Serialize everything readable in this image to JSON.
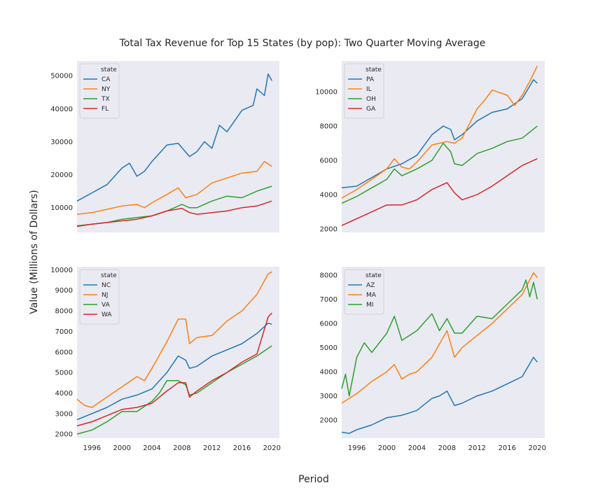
{
  "figure": {
    "title": "Total Tax Revenue for Top 15 States (by pop): Two Quarter Moving Average",
    "xlabel": "Period",
    "ylabel": "Value (Millions of Dollars)",
    "background": "#ffffff",
    "axes_background": "#eaeaf2"
  },
  "chart_data": [
    {
      "type": "line",
      "legend_title": "state",
      "legend_placement": "top-left",
      "grid": false,
      "xlim": [
        1994,
        2021
      ],
      "ylim": [
        2500,
        54500
      ],
      "yticks": [
        10000,
        20000,
        30000,
        40000,
        50000
      ],
      "xticks": [],
      "series": [
        {
          "name": "CA",
          "color": "#1f77b4",
          "x": [
            1994,
            1996,
            1998,
            2000,
            2001,
            2002,
            2003,
            2004,
            2006,
            2007.5,
            2009,
            2010,
            2011,
            2012,
            2013,
            2014,
            2016,
            2017.5,
            2018,
            2019,
            2019.5,
            2020
          ],
          "values": [
            12000,
            14500,
            17000,
            22000,
            23500,
            19500,
            21000,
            24000,
            29000,
            29500,
            25500,
            27000,
            30000,
            28000,
            35000,
            33000,
            39500,
            41000,
            46000,
            44000,
            50500,
            48500
          ]
        },
        {
          "name": "NY",
          "color": "#ff7f0e",
          "x": [
            1994,
            1996,
            1998,
            2000,
            2002,
            2003,
            2004,
            2006,
            2007.5,
            2008.5,
            2010,
            2012,
            2014,
            2016,
            2018,
            2019,
            2020
          ],
          "values": [
            8000,
            8500,
            9500,
            10500,
            11000,
            10000,
            11500,
            14000,
            16000,
            13000,
            14000,
            17500,
            19000,
            20500,
            21000,
            24000,
            22500
          ]
        },
        {
          "name": "TX",
          "color": "#2ca02c",
          "x": [
            1994,
            1996,
            1998,
            2000,
            2002,
            2004,
            2006,
            2008,
            2009,
            2010,
            2012,
            2014,
            2016,
            2018,
            2020
          ],
          "values": [
            4500,
            5000,
            5500,
            6500,
            7000,
            7500,
            9000,
            11000,
            10000,
            10000,
            12000,
            13500,
            13000,
            15000,
            16500
          ]
        },
        {
          "name": "FL",
          "color": "#d62728",
          "x": [
            1994,
            1996,
            1998,
            2000,
            2002,
            2004,
            2006,
            2008,
            2009,
            2010,
            2012,
            2014,
            2016,
            2018,
            2020
          ],
          "values": [
            4300,
            5000,
            5500,
            6000,
            6500,
            7500,
            9000,
            9800,
            8500,
            8000,
            8500,
            9000,
            10000,
            10500,
            12000
          ]
        }
      ]
    },
    {
      "type": "line",
      "legend_title": "state",
      "legend_placement": "top-left",
      "grid": false,
      "xlim": [
        1994,
        2021
      ],
      "ylim": [
        1800,
        11800
      ],
      "yticks": [
        2000,
        4000,
        6000,
        8000,
        10000
      ],
      "xticks": [],
      "series": [
        {
          "name": "PA",
          "color": "#1f77b4",
          "x": [
            1994,
            1996,
            1998,
            2000,
            2002,
            2004,
            2006,
            2007.5,
            2008.5,
            2009,
            2010,
            2012,
            2014,
            2016,
            2018,
            2019.5,
            2020
          ],
          "values": [
            4400,
            4500,
            5000,
            5500,
            5800,
            6300,
            7500,
            8000,
            7800,
            7200,
            7500,
            8300,
            8800,
            9000,
            9600,
            10700,
            10500
          ]
        },
        {
          "name": "IL",
          "color": "#ff7f0e",
          "x": [
            1994,
            1996,
            1998,
            2000,
            2001,
            2002,
            2003,
            2004,
            2006,
            2008,
            2009,
            2010,
            2012,
            2013,
            2014,
            2016,
            2017,
            2018,
            2019,
            2020
          ],
          "values": [
            3800,
            4300,
            4900,
            5500,
            6100,
            5600,
            5500,
            5900,
            6900,
            7100,
            7000,
            7300,
            9000,
            9500,
            10100,
            9800,
            9200,
            9800,
            10600,
            11500
          ]
        },
        {
          "name": "OH",
          "color": "#2ca02c",
          "x": [
            1994,
            1996,
            1998,
            2000,
            2001,
            2002,
            2004,
            2006,
            2007.5,
            2008.5,
            2009,
            2010,
            2012,
            2014,
            2016,
            2018,
            2020
          ],
          "values": [
            3500,
            3900,
            4400,
            4900,
            5500,
            5100,
            5500,
            6000,
            7000,
            6500,
            5800,
            5700,
            6400,
            6700,
            7100,
            7300,
            8000
          ]
        },
        {
          "name": "GA",
          "color": "#d62728",
          "x": [
            1994,
            1996,
            1998,
            2000,
            2002,
            2004,
            2006,
            2008,
            2009,
            2010,
            2012,
            2014,
            2016,
            2018,
            2020
          ],
          "values": [
            2200,
            2600,
            3000,
            3400,
            3400,
            3700,
            4300,
            4700,
            4100,
            3700,
            4000,
            4500,
            5100,
            5700,
            6100
          ]
        }
      ]
    },
    {
      "type": "line",
      "legend_title": "state",
      "legend_placement": "top-left",
      "grid": false,
      "xlim": [
        1994,
        2021
      ],
      "ylim": [
        1800,
        10150
      ],
      "yticks": [
        2000,
        3000,
        4000,
        5000,
        6000,
        7000,
        8000,
        9000,
        10000
      ],
      "xticks": [
        1996,
        2000,
        2004,
        2008,
        2012,
        2016,
        2020
      ],
      "series": [
        {
          "name": "NC",
          "color": "#1f77b4",
          "x": [
            1994,
            1996,
            1998,
            2000,
            2002,
            2004,
            2006,
            2007.5,
            2008.5,
            2009,
            2010,
            2012,
            2014,
            2016,
            2018,
            2019.5,
            2020
          ],
          "values": [
            2700,
            3000,
            3300,
            3700,
            3900,
            4200,
            5000,
            5800,
            5600,
            5200,
            5300,
            5800,
            6100,
            6400,
            6900,
            7400,
            7350
          ]
        },
        {
          "name": "NJ",
          "color": "#ff7f0e",
          "x": [
            1994,
            1995,
            1996,
            1998,
            2000,
            2002,
            2003,
            2004,
            2006,
            2007.5,
            2008.5,
            2009,
            2010,
            2012,
            2014,
            2016,
            2018,
            2019.5,
            2020
          ],
          "values": [
            3700,
            3400,
            3300,
            3800,
            4300,
            4800,
            4600,
            5200,
            6500,
            7600,
            7600,
            6400,
            6700,
            6800,
            7500,
            8000,
            8800,
            9800,
            9900
          ]
        },
        {
          "name": "VA",
          "color": "#2ca02c",
          "x": [
            1994,
            1996,
            1998,
            2000,
            2002,
            2004,
            2005,
            2006,
            2007.5,
            2008.5,
            2009,
            2010,
            2012,
            2014,
            2016,
            2018,
            2020
          ],
          "values": [
            2000,
            2200,
            2600,
            3100,
            3100,
            3600,
            4000,
            4600,
            4600,
            4400,
            3900,
            4000,
            4500,
            5000,
            5400,
            5800,
            6300
          ]
        },
        {
          "name": "WA",
          "color": "#d62728",
          "x": [
            1994,
            1996,
            1998,
            2000,
            2002,
            2004,
            2006,
            2007.5,
            2008.5,
            2009,
            2010,
            2012,
            2014,
            2016,
            2018,
            2019.5,
            2020
          ],
          "values": [
            2400,
            2600,
            2900,
            3200,
            3300,
            3500,
            4100,
            4500,
            4500,
            3800,
            4100,
            4600,
            5000,
            5500,
            5900,
            7700,
            7900
          ]
        }
      ]
    },
    {
      "type": "line",
      "legend_title": "state",
      "legend_placement": "top-left",
      "grid": false,
      "xlim": [
        1994,
        2021
      ],
      "ylim": [
        1250,
        8350
      ],
      "yticks": [
        2000,
        3000,
        4000,
        5000,
        6000,
        7000,
        8000
      ],
      "xticks": [
        1996,
        2000,
        2004,
        2008,
        2012,
        2016,
        2020
      ],
      "series": [
        {
          "name": "AZ",
          "color": "#1f77b4",
          "x": [
            1994,
            1995,
            1996,
            1998,
            2000,
            2002,
            2003,
            2004,
            2006,
            2007,
            2008,
            2009,
            2010,
            2012,
            2014,
            2016,
            2018,
            2019.5,
            2020
          ],
          "values": [
            1500,
            1450,
            1600,
            1800,
            2100,
            2200,
            2300,
            2400,
            2900,
            3000,
            3200,
            2600,
            2700,
            3000,
            3200,
            3500,
            3800,
            4600,
            4400
          ]
        },
        {
          "name": "MA",
          "color": "#ff7f0e",
          "x": [
            1994,
            1996,
            1998,
            2000,
            2001,
            2002,
            2003,
            2004,
            2006,
            2008,
            2009,
            2010,
            2012,
            2014,
            2016,
            2018,
            2019.5,
            2020
          ],
          "values": [
            2700,
            3100,
            3600,
            4000,
            4300,
            3700,
            3900,
            4000,
            4600,
            5700,
            4600,
            5000,
            5500,
            6000,
            6600,
            7200,
            8100,
            7900
          ]
        },
        {
          "name": "MI",
          "color": "#2ca02c",
          "x": [
            1994,
            1994.5,
            1995,
            1995.5,
            1996,
            1997,
            1998,
            2000,
            2001,
            2002,
            2004,
            2006,
            2007,
            2008,
            2009,
            2010,
            2012,
            2014,
            2016,
            2018,
            2018.5,
            2019,
            2019.5,
            2020
          ],
          "values": [
            3300,
            3900,
            3000,
            3800,
            4600,
            5200,
            4800,
            5600,
            6300,
            5300,
            5700,
            6400,
            5700,
            6200,
            5600,
            5600,
            6300,
            6200,
            6800,
            7400,
            7800,
            7100,
            7700,
            7000
          ]
        }
      ]
    }
  ]
}
